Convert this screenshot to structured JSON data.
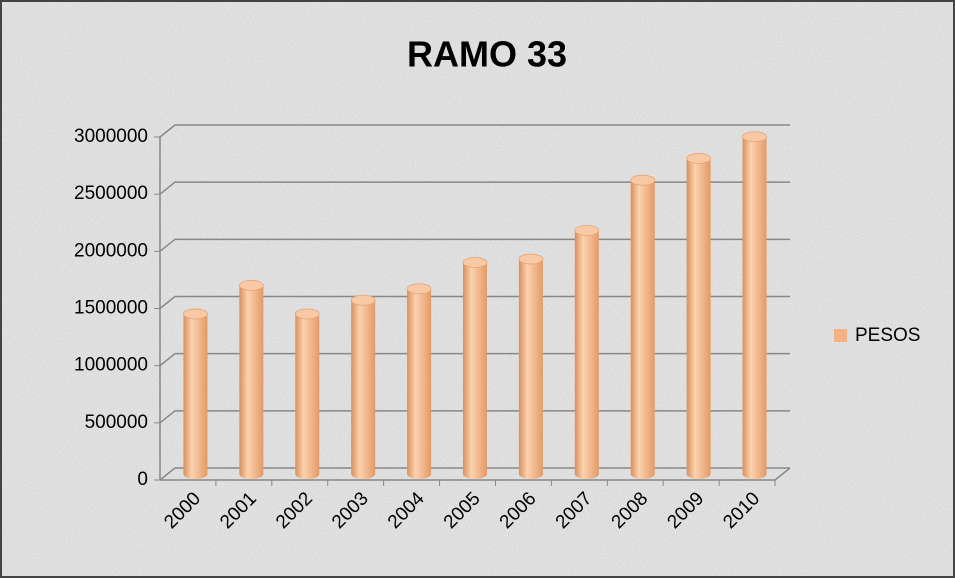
{
  "chart_data": {
    "type": "bar",
    "title": "RAMO 33",
    "categories": [
      "2000",
      "2001",
      "2002",
      "2003",
      "2004",
      "2005",
      "2006",
      "2007",
      "2008",
      "2009",
      "2010"
    ],
    "series": [
      {
        "name": "PESOS",
        "color": "#f4b183",
        "values": [
          1400000,
          1650000,
          1400000,
          1520000,
          1620000,
          1850000,
          1880000,
          2130000,
          2570000,
          2760000,
          2950000
        ]
      }
    ],
    "ylim": [
      0,
      3000000
    ],
    "yticks": [
      0,
      500000,
      1000000,
      1500000,
      2000000,
      2500000,
      3000000
    ],
    "grid": true,
    "legend": "right"
  }
}
